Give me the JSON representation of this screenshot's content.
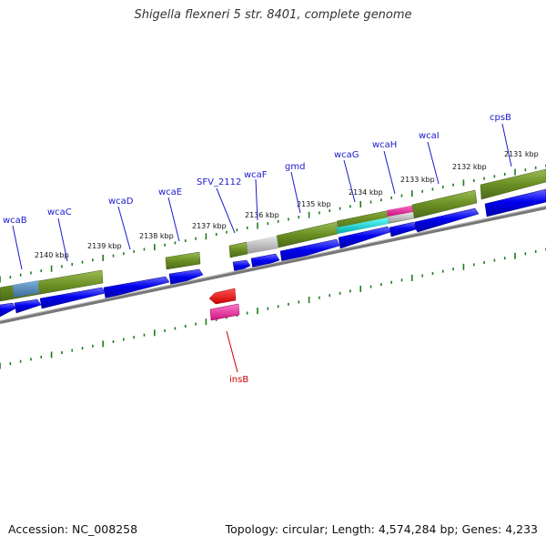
{
  "title": "Shigella flexneri 5 str. 8401, complete genome",
  "footer": {
    "accession": "Accession: NC_008258",
    "topology": "Topology: circular; Length: 4,574,284 bp; Genes: 4,233"
  },
  "colors": {
    "background": "#ffffff",
    "feature_blue": "#0000ee",
    "feature_olive": "#6b8e23",
    "feature_grey": "#bbbbbb",
    "feature_cyan": "#00cccc",
    "feature_magenta": "#e0208a",
    "feature_steelblue": "#4a7fb0",
    "feature_red": "#ee0000",
    "backbone": "#888888",
    "tick_green": "#1f7a1f",
    "gene_label": "#1a1acc",
    "insertion_label": "#cc0000"
  },
  "scale_labels": [
    "2131 kbp",
    "2132 kbp",
    "2133 kbp",
    "2134 kbp",
    "2135 kbp",
    "2136 kbp",
    "2137 kbp",
    "2138 kbp",
    "2139 kbp",
    "2140 kbp"
  ],
  "gene_labels": [
    "cpsB",
    "wcaI",
    "wcaH",
    "wcaG",
    "gmd",
    "wcaF",
    "SFV_2112",
    "wcaE",
    "wcaD",
    "wcaC",
    "wcaB",
    "insB"
  ]
}
